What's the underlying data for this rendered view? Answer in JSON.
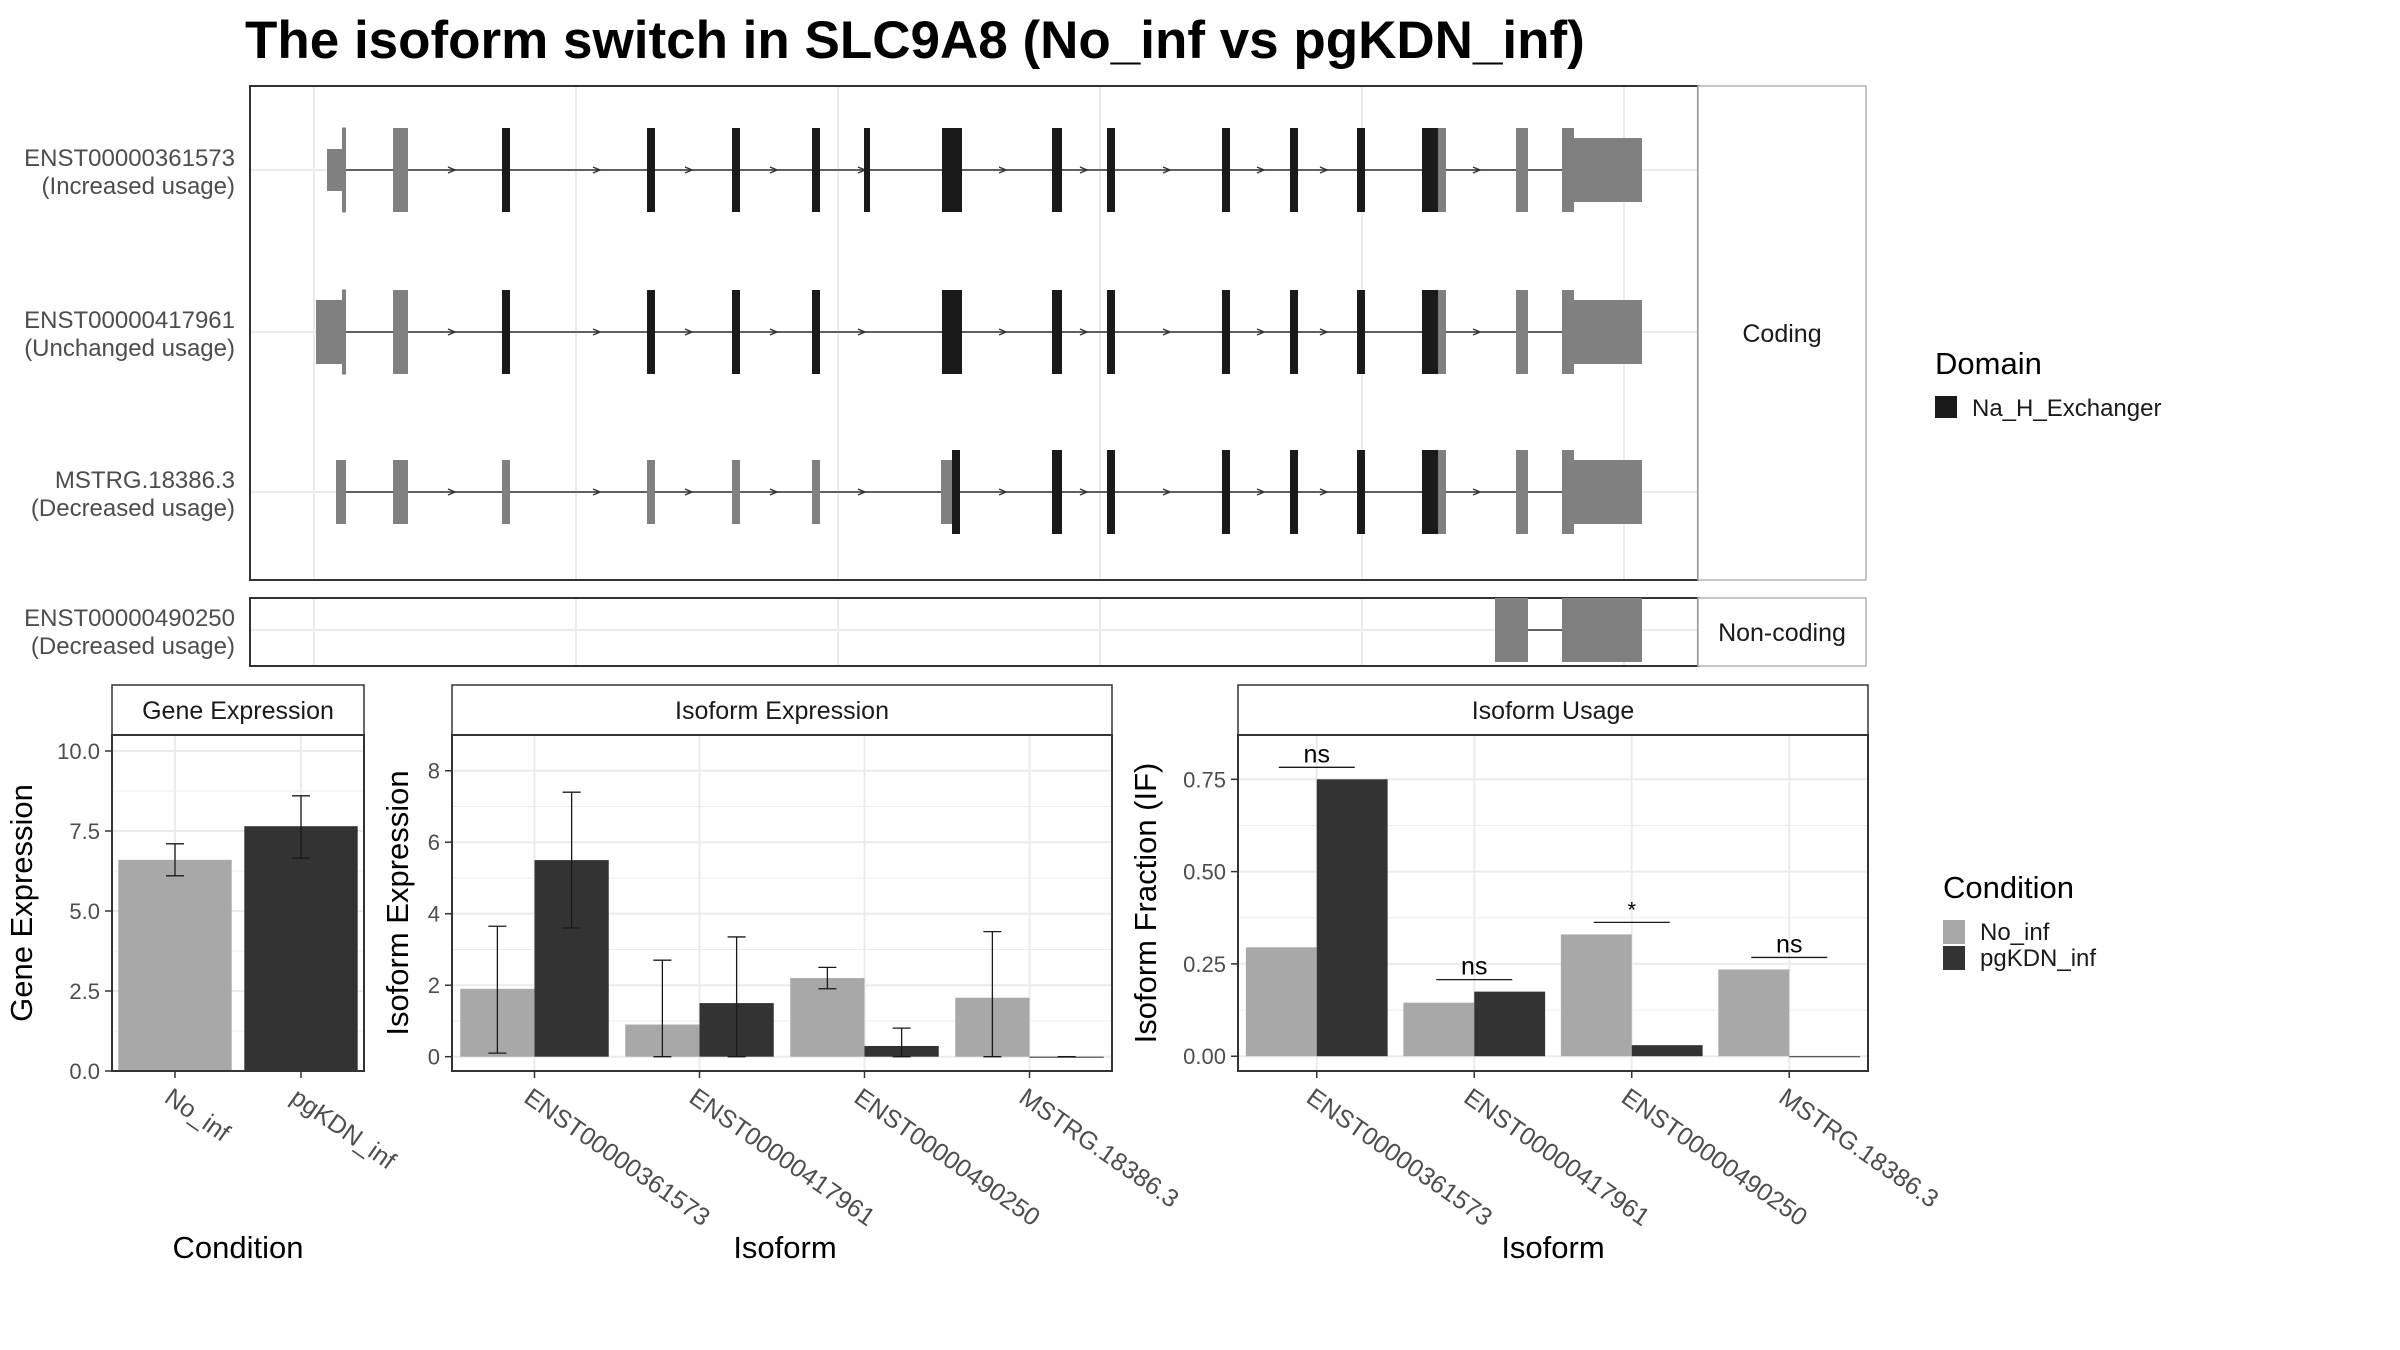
{
  "title": "The isoform switch in SLC9A8 (No_inf vs pgKDN_inf)",
  "colors": {
    "no_inf": "#a8a8a8",
    "pgkdn_inf": "#333333",
    "domain": "#1a1a1a",
    "exon": "#808080",
    "grid": "#ebebeb",
    "panel_border": "#333333",
    "strip_border": "#b3b3b3"
  },
  "structure": {
    "facets": [
      "Coding",
      "Non-coding"
    ],
    "isoforms": [
      {
        "id": "ENST00000361573",
        "usage": "(Increased usage)",
        "facet": "Coding"
      },
      {
        "id": "ENST00000417961",
        "usage": "(Unchanged usage)",
        "facet": "Coding"
      },
      {
        "id": "MSTRG.18386.3",
        "usage": "(Decreased usage)",
        "facet": "Coding"
      },
      {
        "id": "ENST00000490250",
        "usage": "(Decreased usage)",
        "facet": "Non-coding"
      }
    ],
    "domain_legend_title": "Domain",
    "domain_legend_items": [
      "Na_H_Exchanger"
    ]
  },
  "condition_legend": {
    "title": "Condition",
    "items": [
      "No_inf",
      "pgKDN_inf"
    ]
  },
  "chart_data": [
    {
      "type": "bar",
      "title": "Gene Expression",
      "xlabel": "Condition",
      "ylabel": "Gene Expression",
      "categories": [
        "No_inf",
        "pgKDN_inf"
      ],
      "values": [
        6.6,
        7.65
      ],
      "error": [
        [
          6.1,
          7.1
        ],
        [
          6.65,
          8.6
        ]
      ],
      "ylim": [
        0,
        10.5
      ],
      "yticks": [
        "0.0",
        "2.5",
        "5.0",
        "7.5",
        "10.0"
      ],
      "grid": true
    },
    {
      "type": "bar",
      "title": "Isoform Expression",
      "xlabel": "Isoform",
      "ylabel": "Isoform Expression",
      "categories": [
        "ENST00000361573",
        "ENST00000417961",
        "ENST00000490250",
        "MSTRG.18386.3"
      ],
      "series": [
        {
          "name": "No_inf",
          "values": [
            1.9,
            0.9,
            2.2,
            1.65
          ],
          "error": [
            [
              0.1,
              3.65
            ],
            [
              0.0,
              2.7
            ],
            [
              1.9,
              2.5
            ],
            [
              0.0,
              3.5
            ]
          ]
        },
        {
          "name": "pgKDN_inf",
          "values": [
            5.5,
            1.5,
            0.3,
            0.0
          ],
          "error": [
            [
              3.6,
              7.4
            ],
            [
              0.0,
              3.35
            ],
            [
              0.0,
              0.8
            ],
            [
              0.0,
              0.0
            ]
          ]
        }
      ],
      "ylim": [
        -0.4,
        9.0
      ],
      "yticks": [
        "0",
        "2",
        "4",
        "6",
        "8"
      ],
      "grid": true
    },
    {
      "type": "bar",
      "title": "Isoform Usage",
      "xlabel": "Isoform",
      "ylabel": "Isoform Fraction (IF)",
      "categories": [
        "ENST00000361573",
        "ENST00000417961",
        "ENST00000490250",
        "MSTRG.18386.3"
      ],
      "series": [
        {
          "name": "No_inf",
          "values": [
            0.295,
            0.145,
            0.33,
            0.235
          ]
        },
        {
          "name": "pgKDN_inf",
          "values": [
            0.75,
            0.175,
            0.03,
            0.0
          ]
        }
      ],
      "significance": [
        "ns",
        "ns",
        "*",
        "ns"
      ],
      "ylim": [
        -0.04,
        0.87
      ],
      "yticks": [
        "0.00",
        "0.25",
        "0.50",
        "0.75"
      ],
      "grid": true
    }
  ]
}
